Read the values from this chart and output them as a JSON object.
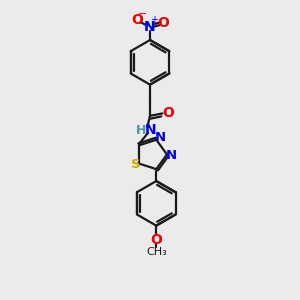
{
  "bg_color": "#ebebeb",
  "bond_color": "#1a1a1a",
  "N_color": "#0000ee",
  "O_color": "#ee0000",
  "S_color": "#ccaa00",
  "H_color": "#4a9a9a",
  "lw": 1.6,
  "fig_size": [
    3.0,
    3.0
  ],
  "dpi": 100,
  "xlim": [
    0,
    10
  ],
  "ylim": [
    0,
    10
  ]
}
